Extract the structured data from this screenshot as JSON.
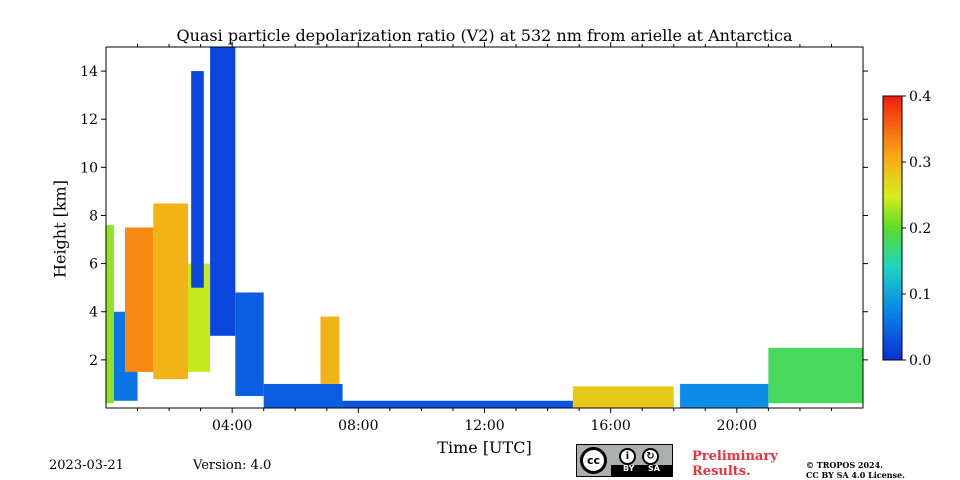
{
  "chart_data": {
    "type": "heatmap",
    "title": "Quasi particle depolarization ratio (V2) at 532 nm from arielle at Antarctica",
    "xlabel": "Time [UTC]",
    "ylabel": "Height [km]",
    "x_range_hours": [
      0,
      24
    ],
    "ylim": [
      0,
      15
    ],
    "x_ticks": [
      {
        "hour": 4,
        "label": "04:00"
      },
      {
        "hour": 8,
        "label": "08:00"
      },
      {
        "hour": 12,
        "label": "12:00"
      },
      {
        "hour": 16,
        "label": "16:00"
      },
      {
        "hour": 20,
        "label": "20:00"
      }
    ],
    "y_ticks": [
      {
        "value": 2,
        "label": "2"
      },
      {
        "value": 4,
        "label": "4"
      },
      {
        "value": 6,
        "label": "6"
      },
      {
        "value": 8,
        "label": "8"
      },
      {
        "value": 10,
        "label": "10"
      },
      {
        "value": 12,
        "label": "12"
      },
      {
        "value": 14,
        "label": "14"
      }
    ],
    "colorbar": {
      "range": [
        0,
        0.4
      ],
      "ticks": [
        {
          "value": 0.0,
          "label": "0.0"
        },
        {
          "value": 0.1,
          "label": "0.1"
        },
        {
          "value": 0.2,
          "label": "0.2"
        },
        {
          "value": 0.3,
          "label": "0.3"
        },
        {
          "value": 0.4,
          "label": "0.4"
        }
      ],
      "colormap": "jet-like (blue - cyan - green - yellow - orange - red)"
    },
    "regions": [
      {
        "t0": 0.0,
        "t1": 0.25,
        "h0": 0.2,
        "h1": 7.6,
        "value": 0.22
      },
      {
        "t0": 0.25,
        "t1": 1.0,
        "h0": 0.3,
        "h1": 4.0,
        "value": 0.06
      },
      {
        "t0": 0.6,
        "t1": 1.5,
        "h0": 1.5,
        "h1": 7.5,
        "value": 0.33
      },
      {
        "t0": 1.5,
        "t1": 2.6,
        "h0": 1.2,
        "h1": 8.5,
        "value": 0.3
      },
      {
        "t0": 2.6,
        "t1": 3.3,
        "h0": 1.5,
        "h1": 6.0,
        "value": 0.24
      },
      {
        "t0": 2.7,
        "t1": 3.1,
        "h0": 5.0,
        "h1": 14.0,
        "value": 0.02
      },
      {
        "t0": 3.3,
        "t1": 4.1,
        "h0": 3.0,
        "h1": 15.0,
        "value": 0.02
      },
      {
        "t0": 4.1,
        "t1": 5.0,
        "h0": 0.5,
        "h1": 4.8,
        "value": 0.04
      },
      {
        "t0": 5.0,
        "t1": 7.5,
        "h0": 0.0,
        "h1": 1.0,
        "value": 0.04
      },
      {
        "t0": 6.8,
        "t1": 7.4,
        "h0": 1.0,
        "h1": 3.8,
        "value": 0.3
      },
      {
        "t0": 7.5,
        "t1": 15.0,
        "h0": 0.0,
        "h1": 0.3,
        "value": 0.03
      },
      {
        "t0": 14.8,
        "t1": 18.0,
        "h0": 0.0,
        "h1": 0.9,
        "value": 0.28
      },
      {
        "t0": 18.2,
        "t1": 21.0,
        "h0": 0.0,
        "h1": 1.0,
        "value": 0.08
      },
      {
        "t0": 21.0,
        "t1": 24.0,
        "h0": 0.2,
        "h1": 2.5,
        "value": 0.18
      }
    ]
  },
  "footer": {
    "date": "2023-03-21",
    "version": "Version: 4.0",
    "cc_by": "BY",
    "cc_sa": "SA",
    "preliminary_line1": "Preliminary",
    "preliminary_line2": "Results.",
    "copyright_line1": "© TROPOS 2024.",
    "copyright_line2": "CC BY SA 4.0 License."
  }
}
